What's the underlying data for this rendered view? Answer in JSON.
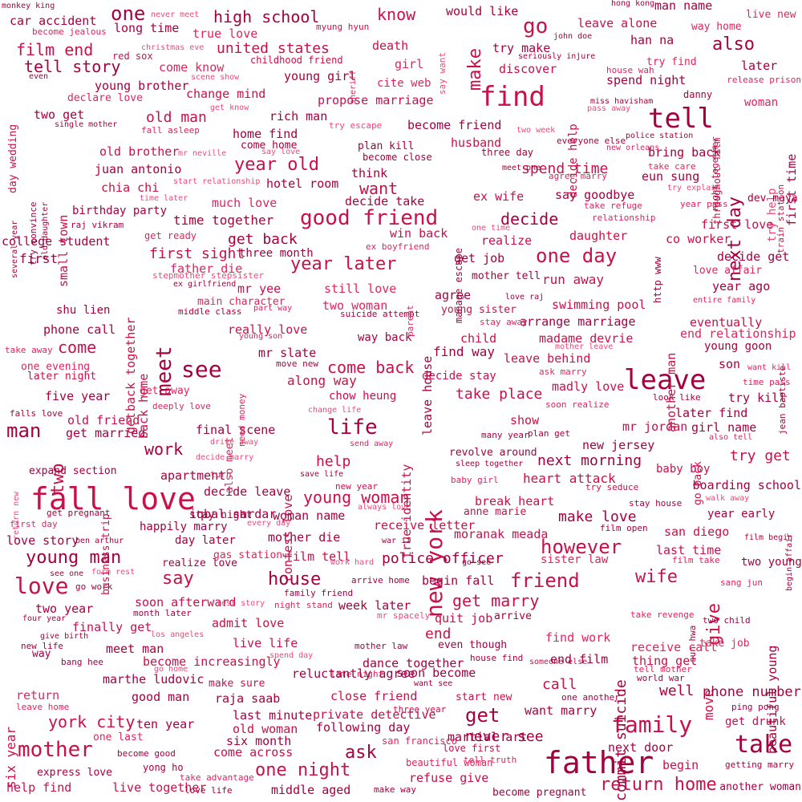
{
  "colors": {
    "background": "#ffffff",
    "darkest": "#6b0029",
    "dark": "#a5003f",
    "mid": "#c8104a",
    "light": "#e0245e",
    "lighter": "#f2477a",
    "lightest": "#ff6a93"
  },
  "words": [
    {
      "id": "w1",
      "text": "fall love",
      "weight": 100
    },
    {
      "id": "w2",
      "text": "father",
      "weight": 95
    },
    {
      "id": "w3",
      "text": "find",
      "weight": 92
    },
    {
      "id": "w4",
      "text": "leave",
      "weight": 90
    },
    {
      "id": "w5",
      "text": "tell",
      "weight": 88
    },
    {
      "id": "w6",
      "text": "new york",
      "weight": 80
    },
    {
      "id": "w7",
      "text": "family",
      "weight": 78
    },
    {
      "id": "w8",
      "text": "take",
      "weight": 76
    },
    {
      "id": "w9",
      "text": "mother",
      "weight": 72
    },
    {
      "id": "w10",
      "text": "love",
      "weight": 72
    },
    {
      "id": "w11",
      "text": "see",
      "weight": 70
    },
    {
      "id": "w12",
      "text": "meet",
      "weight": 70
    },
    {
      "id": "w13",
      "text": "good friend",
      "weight": 66
    },
    {
      "id": "w14",
      "text": "one day",
      "weight": 64
    },
    {
      "id": "w15",
      "text": "year later",
      "weight": 64
    },
    {
      "id": "w16",
      "text": "life",
      "weight": 64
    },
    {
      "id": "w17",
      "text": "friend",
      "weight": 62
    },
    {
      "id": "w18",
      "text": "however",
      "weight": 62
    },
    {
      "id": "w19",
      "text": "young man",
      "weight": 60
    },
    {
      "id": "w20",
      "text": "return home",
      "weight": 60
    },
    {
      "id": "w21",
      "text": "year old",
      "weight": 58
    },
    {
      "id": "w22",
      "text": "go",
      "weight": 58
    },
    {
      "id": "w23",
      "text": "man",
      "weight": 58
    },
    {
      "id": "w24",
      "text": "one",
      "weight": 56
    },
    {
      "id": "w25",
      "text": "wife",
      "weight": 56
    },
    {
      "id": "w26",
      "text": "house",
      "weight": 56
    },
    {
      "id": "w27",
      "text": "give",
      "weight": 54
    },
    {
      "id": "w28",
      "text": "get",
      "weight": 54
    },
    {
      "id": "w29",
      "text": "next day",
      "weight": 54
    },
    {
      "id": "w30",
      "text": "one night",
      "weight": 52
    },
    {
      "id": "w31",
      "text": "say",
      "weight": 52
    },
    {
      "id": "w32",
      "text": "young woman",
      "weight": 52
    },
    {
      "id": "w33",
      "text": "work",
      "weight": 50
    },
    {
      "id": "w34",
      "text": "ask",
      "weight": 50
    },
    {
      "id": "w35",
      "text": "make",
      "weight": 50
    },
    {
      "id": "w36",
      "text": "also",
      "weight": 48
    },
    {
      "id": "w37",
      "text": "film end",
      "weight": 48
    },
    {
      "id": "w38",
      "text": "tell story",
      "weight": 48
    },
    {
      "id": "w39",
      "text": "two",
      "weight": 48
    },
    {
      "id": "w40",
      "text": "commit suicide",
      "weight": 48
    },
    {
      "id": "w41",
      "text": "get marry",
      "weight": 46
    },
    {
      "id": "w42",
      "text": "want",
      "weight": 46
    },
    {
      "id": "w43",
      "text": "decide",
      "weight": 46
    },
    {
      "id": "w44",
      "text": "york city",
      "weight": 46
    },
    {
      "id": "w45",
      "text": "high school",
      "weight": 44
    },
    {
      "id": "w46",
      "text": "know",
      "weight": 44
    },
    {
      "id": "w47",
      "text": "come",
      "weight": 44
    },
    {
      "id": "w48",
      "text": "come back",
      "weight": 44
    },
    {
      "id": "w49",
      "text": "take place",
      "weight": 44
    },
    {
      "id": "w50",
      "text": "next morning",
      "weight": 44
    },
    {
      "id": "w51",
      "text": "united states",
      "weight": 42
    },
    {
      "id": "w52",
      "text": "old man",
      "weight": 42
    },
    {
      "id": "w53",
      "text": "help",
      "weight": 42
    },
    {
      "id": "w54",
      "text": "first sight",
      "weight": 42
    },
    {
      "id": "w55",
      "text": "get back",
      "weight": 42
    },
    {
      "id": "w56",
      "text": "heart attack",
      "weight": 42
    },
    {
      "id": "w57",
      "text": "make love",
      "weight": 42
    },
    {
      "id": "w58",
      "text": "police officer",
      "weight": 42
    },
    {
      "id": "w59",
      "text": "well",
      "weight": 42
    },
    {
      "id": "w60",
      "text": "end",
      "weight": 42
    },
    {
      "id": "w61",
      "text": "try get",
      "weight": 42
    },
    {
      "id": "w62",
      "text": "time together",
      "weight": 40
    },
    {
      "id": "w63",
      "text": "find way",
      "weight": 40
    },
    {
      "id": "w64",
      "text": "move",
      "weight": 40
    },
    {
      "id": "w65",
      "text": "run away",
      "weight": 40
    },
    {
      "id": "w66",
      "text": "spend time",
      "weight": 40
    },
    {
      "id": "w67",
      "text": "first",
      "weight": 40
    }
  ],
  "small_words": [
    "monkey king",
    "car accident",
    "become jealous",
    "long time",
    "true love",
    "never meet",
    "myung hyun",
    "would like",
    "man name",
    "hong kong",
    "live new",
    "way home",
    "leave alone",
    "john doe",
    "han na",
    "try make",
    "christmas eve",
    "red sox",
    "come know",
    "death",
    "say want",
    "seriously injure",
    "childhood friend",
    "girl",
    "discover",
    "try find",
    "later",
    "house wah",
    "young girl",
    "even",
    "scene show",
    "release prison",
    "cite web",
    "young brother",
    "spend night",
    "change mind",
    "declare love",
    "propose marriage",
    "miss havisham",
    "danny",
    "woman",
    "get know",
    "two get",
    "rich man",
    "pass away",
    "single mother",
    "fall asleep",
    "try escape",
    "become friend",
    "two week",
    "police station",
    "home find",
    "husband",
    "everyone else",
    "three day",
    "new orleans",
    "come home",
    "plan kill",
    "mr neville",
    "say love",
    "become close",
    "bring back",
    "old brother",
    "take care",
    "meet one",
    "juan antonio",
    "think",
    "agree marry",
    "try help",
    "eun sung",
    "start relationship",
    "hotel room",
    "try explain",
    "chia chi",
    "time later",
    "decide take",
    "ex wife",
    "say goodbye",
    "take refuge",
    "year pass",
    "dev maya",
    "birthday party",
    "much love",
    "relationship",
    "first love",
    "raj vikram",
    "one time",
    "daughter",
    "college student",
    "get ready",
    "win back",
    "realize",
    "co worker",
    "ex boyfriend",
    "three month",
    "get job",
    "decide get",
    "love affair",
    "stepmother stepsister",
    "father die",
    "mother tell",
    "year ago",
    "ex girlfriend",
    "mr yee",
    "still love",
    "agree",
    "love raj",
    "entire family",
    "main character",
    "two woman",
    "swimming pool",
    "shu lien",
    "middle class",
    "part way",
    "young sister",
    "suicide attempt",
    "eventually",
    "arrange marriage",
    "phone call",
    "stay away",
    "really love",
    "end relationship",
    "young son",
    "way back",
    "child",
    "madame devrie",
    "young goon",
    "take away",
    "mother leave",
    "mr slate",
    "leave behind",
    "son",
    "one evening",
    "move new",
    "ask marry",
    "want kill",
    "later night",
    "along way",
    "decide stay",
    "time pass",
    "get away",
    "madly love",
    "chow heung",
    "look like",
    "try kill",
    "five year",
    "deeply love",
    "soon realize",
    "falls love",
    "later find",
    "change life",
    "old friend",
    "show",
    "get married",
    "final scene",
    "mr jordan",
    "girl name",
    "drive away",
    "many year",
    "plan get",
    "also tell",
    "send away",
    "new jersey",
    "revolve around",
    "decide marry",
    "sleep together",
    "baby boy",
    "expand section",
    "save life",
    "apartment",
    "turn",
    "baby girl",
    "return new",
    "try seduce",
    "boarding school",
    "new year",
    "break heart",
    "decide leave",
    "walk away",
    "always love",
    "stay house",
    "begin affair",
    "get pregnant",
    "stay night",
    "iqbal sardar",
    "woman name",
    "anne marie",
    "year early",
    "first day",
    "happily marry",
    "every day",
    "receive letter",
    "film open",
    "san diego",
    "love story",
    "day later",
    "mother die",
    "war ii",
    "moranak meada",
    "film begin",
    "ben arthur",
    "gas station",
    "film tell",
    "last time",
    "realize love",
    "film take",
    "sister law",
    "two young",
    "work hard",
    "go see",
    "see one",
    "form rest",
    "arrive home",
    "begin fall",
    "sang jun",
    "go work",
    "family friend",
    "soon afterward",
    "rest story",
    "night stand",
    "week later",
    "two year",
    "month later",
    "mr spacely",
    "quit job",
    "arrive",
    "take revenge",
    "sun hwa",
    "two child",
    "finally get",
    "admit love",
    "four year",
    "los angeles",
    "meet man",
    "find work",
    "give birth",
    "live life",
    "mother law",
    "even though",
    "receive call",
    "take job",
    "new life",
    "spend day",
    "house find",
    "thing get",
    "bang hee",
    "become increasingly",
    "dance together",
    "someone else",
    "end film",
    "way",
    "go home",
    "late night",
    "soon become",
    "tell mother",
    "world war",
    "marthe ludovic",
    "make sure",
    "want see",
    "reluctantly agree",
    "call",
    "phone number",
    "return",
    "raja saab",
    "close friend",
    "start new",
    "one another",
    "leave home",
    "good man",
    "private detective",
    "three year",
    "want marry",
    "ping pong",
    "ten year",
    "last minute",
    "get drunk",
    "one last",
    "old woman",
    "following day",
    "martial art",
    "six month",
    "san francisco",
    "love first",
    "next door",
    "become good",
    "come across",
    "beautiful woman",
    "tell truth",
    "begin",
    "express love",
    "yong ho",
    "take advantage",
    "getting marry",
    "help find",
    "live together",
    "love life",
    "middle aged",
    "refuse give",
    "make way",
    "become pregnant",
    "another woman",
    "never see",
    "six year",
    "get",
    "back together",
    "back home",
    "small town",
    "true identity",
    "confess love",
    "leave house",
    "manage escape",
    "another man",
    "beautiful young",
    "jean baptiste",
    "first time",
    "throughout film",
    "night together",
    "sheriff",
    "train station",
    "parent",
    "need money",
    "also meet",
    "business trip",
    "try convince",
    "old daughter",
    "several year",
    "day wedding",
    "decide help",
    "http www",
    "go back",
    "meet young",
    "return"
  ]
}
